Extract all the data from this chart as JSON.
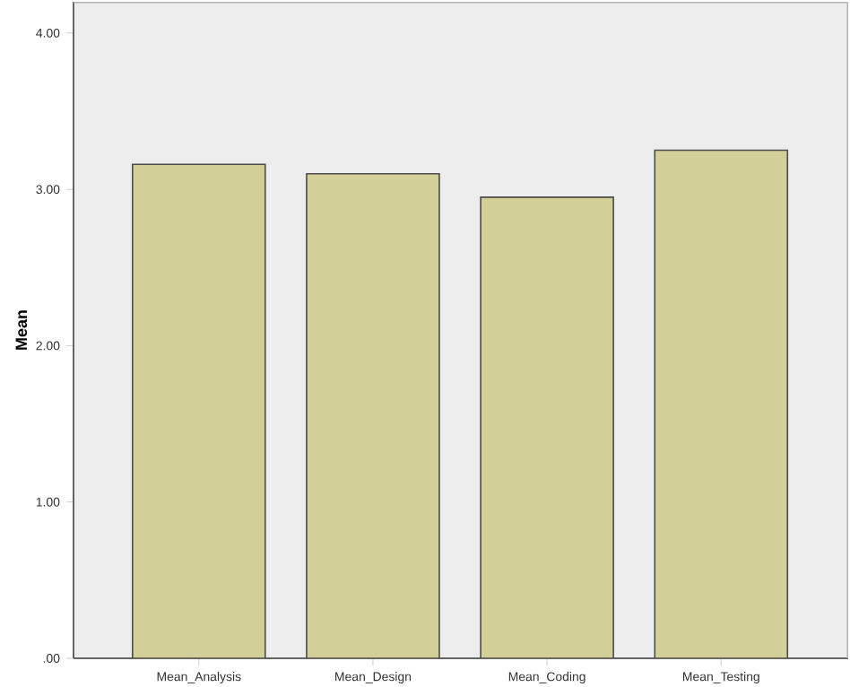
{
  "chart_data": {
    "type": "bar",
    "ylabel": "Mean",
    "categories": [
      "Mean_Analysis",
      "Mean_Design",
      "Mean_Coding",
      "Mean_Testing"
    ],
    "values": [
      3.16,
      3.1,
      2.95,
      3.25
    ],
    "color": "#d3cf98",
    "ylim": [
      0,
      4.2
    ],
    "yticks": [
      {
        "value": 0,
        "label": ".00"
      },
      {
        "value": 1,
        "label": "1.00"
      },
      {
        "value": 2,
        "label": "2.00"
      },
      {
        "value": 3,
        "label": "3.00"
      },
      {
        "value": 4,
        "label": "4.00"
      }
    ],
    "grid": false
  }
}
